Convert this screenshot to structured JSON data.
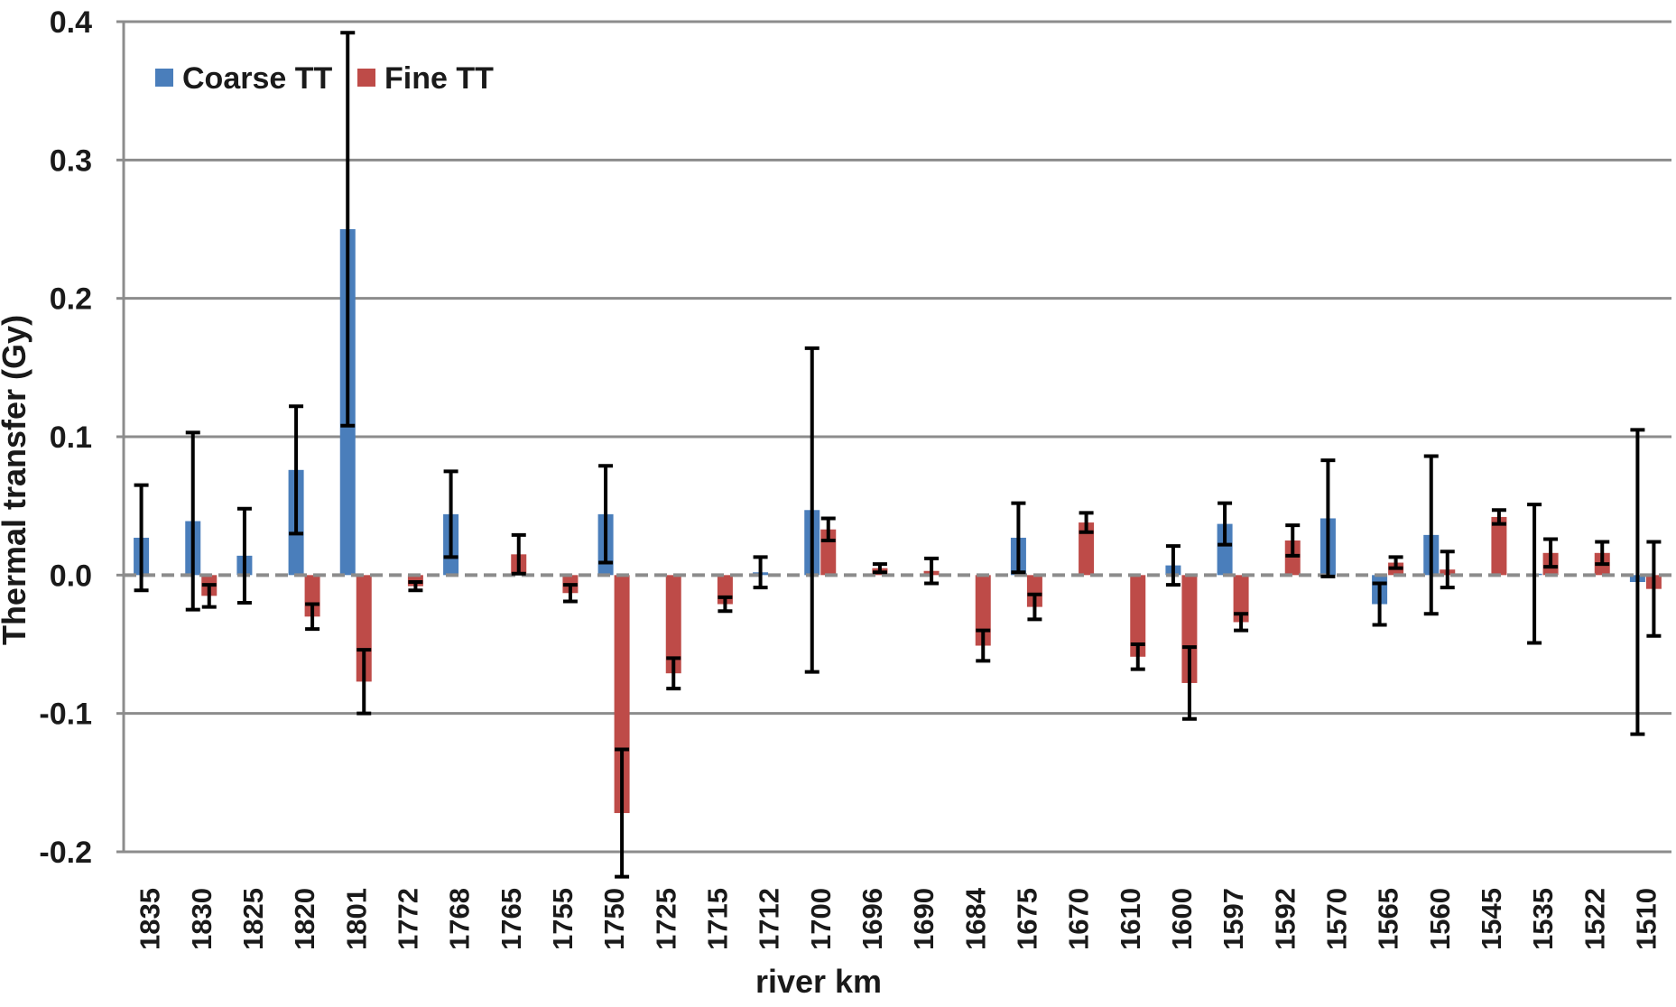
{
  "chart_data": {
    "type": "bar",
    "title": "",
    "xlabel": "river km",
    "ylabel": "Thermal transfer (Gy)",
    "ylim": [
      -0.2,
      0.4
    ],
    "yticks": [
      -0.2,
      -0.1,
      0.0,
      0.1,
      0.2,
      0.3,
      0.4
    ],
    "ytick_labels": [
      "-0.2",
      "-0.1",
      "0.0",
      "0.1",
      "0.2",
      "0.3",
      "0.4"
    ],
    "grid": true,
    "legend_position": "top-left",
    "categories": [
      "1835",
      "1830",
      "1825",
      "1820",
      "1801",
      "1772",
      "1768",
      "1765",
      "1755",
      "1750",
      "1725",
      "1715",
      "1712",
      "1700",
      "1696",
      "1690",
      "1684",
      "1675",
      "1670",
      "1610",
      "1600",
      "1597",
      "1592",
      "1570",
      "1565",
      "1560",
      "1545",
      "1535",
      "1522",
      "1510"
    ],
    "series": [
      {
        "name": "Coarse TT",
        "color": "#4a7ebb",
        "values": [
          0.027,
          0.039,
          0.014,
          0.076,
          0.25,
          null,
          0.044,
          null,
          null,
          0.044,
          null,
          null,
          0.002,
          0.047,
          null,
          null,
          null,
          0.027,
          null,
          null,
          0.007,
          0.037,
          null,
          0.041,
          -0.021,
          0.029,
          null,
          0.001,
          null,
          -0.005
        ],
        "errors": [
          0.038,
          0.064,
          0.034,
          0.046,
          0.142,
          null,
          0.031,
          null,
          null,
          0.035,
          null,
          null,
          0.011,
          0.117,
          null,
          null,
          null,
          0.025,
          null,
          null,
          0.014,
          0.015,
          null,
          0.042,
          0.015,
          0.057,
          null,
          0.05,
          null,
          0.11
        ]
      },
      {
        "name": "Fine TT",
        "color": "#be4b48",
        "values": [
          null,
          -0.015,
          null,
          -0.03,
          -0.077,
          -0.008,
          null,
          0.015,
          -0.013,
          -0.172,
          -0.071,
          -0.021,
          null,
          0.033,
          0.005,
          0.003,
          -0.051,
          -0.023,
          0.038,
          -0.059,
          -0.078,
          -0.034,
          0.025,
          null,
          0.009,
          0.004,
          0.042,
          0.016,
          0.016,
          -0.01
        ]
      }
    ],
    "fine_errors": [
      null,
      0.008,
      null,
      0.009,
      0.023,
      0.003,
      null,
      0.014,
      0.006,
      0.046,
      0.011,
      0.005,
      null,
      0.008,
      0.003,
      0.009,
      0.011,
      0.009,
      0.007,
      0.009,
      0.026,
      0.006,
      0.011,
      null,
      0.004,
      0.013,
      0.005,
      0.01,
      0.008,
      0.034
    ]
  }
}
